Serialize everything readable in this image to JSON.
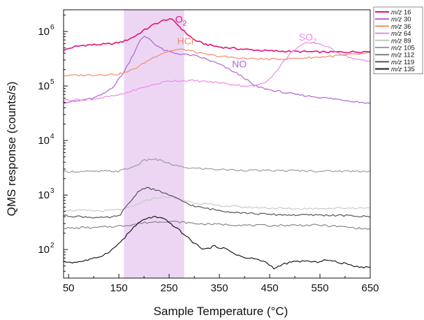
{
  "chart_data": {
    "type": "line",
    "xlabel": "Sample Temperature (°C)",
    "ylabel": "QMS response (counts/s)",
    "x_unit": "°C",
    "xlim": [
      40,
      650
    ],
    "ylim": [
      30,
      2500000
    ],
    "y_scale": "log",
    "x_ticks": [
      50,
      150,
      250,
      350,
      450,
      550,
      650
    ],
    "y_ticks": [
      {
        "value": 100,
        "label": "10",
        "exp": "2"
      },
      {
        "value": 1000,
        "label": "10",
        "exp": "3"
      },
      {
        "value": 10000,
        "label": "10",
        "exp": "4"
      },
      {
        "value": 100000,
        "label": "10",
        "exp": "5"
      },
      {
        "value": 1000000,
        "label": "10",
        "exp": "6"
      }
    ],
    "grid": false,
    "legend_position": "top-right",
    "shaded_region": {
      "x_start": 160,
      "x_end": 280,
      "color": "#ecd6f4"
    },
    "annotations": [
      {
        "text": "O",
        "sub": "2",
        "x": 262,
        "y": 1450000,
        "color": "#e0157a"
      },
      {
        "text": "HCl",
        "sub": "",
        "x": 266,
        "y": 580000,
        "color": "#f58a6e"
      },
      {
        "text": "NO",
        "sub": "",
        "x": 375,
        "y": 220000,
        "color": "#b064d6"
      },
      {
        "text": "SO",
        "sub": "2",
        "x": 508,
        "y": 680000,
        "color": "#ee8ae6"
      }
    ],
    "series": [
      {
        "name": "m/z 16",
        "color": "#e0157a",
        "width": 1.6,
        "x": [
          40,
          60,
          80,
          100,
          120,
          140,
          160,
          180,
          200,
          220,
          240,
          250,
          260,
          280,
          300,
          320,
          350,
          400,
          450,
          500,
          550,
          600,
          650
        ],
        "y": [
          450000,
          520000,
          560000,
          570000,
          580000,
          600000,
          660000,
          800000,
          1050000,
          1350000,
          1600000,
          1700000,
          1550000,
          1000000,
          700000,
          590000,
          520000,
          470000,
          440000,
          430000,
          420000,
          420000,
          430000
        ]
      },
      {
        "name": "m/z 30",
        "color": "#b064d6",
        "width": 1.2,
        "x": [
          40,
          60,
          80,
          100,
          120,
          140,
          160,
          180,
          190,
          200,
          210,
          220,
          240,
          260,
          280,
          300,
          320,
          350,
          370,
          390,
          400,
          420,
          450,
          500,
          550,
          600,
          650
        ],
        "y": [
          50000,
          52000,
          55000,
          60000,
          72000,
          100000,
          180000,
          400000,
          650000,
          800000,
          750000,
          600000,
          450000,
          400000,
          380000,
          360000,
          320000,
          250000,
          200000,
          160000,
          140000,
          100000,
          85000,
          70000,
          62000,
          55000,
          48000
        ]
      },
      {
        "name": "m/z 36",
        "color": "#f58a6e",
        "width": 1.2,
        "x": [
          40,
          100,
          150,
          170,
          190,
          210,
          230,
          250,
          270,
          290,
          310,
          350,
          400,
          450,
          500,
          550,
          600,
          650
        ],
        "y": [
          155000,
          160000,
          165000,
          185000,
          230000,
          300000,
          380000,
          440000,
          470000,
          450000,
          400000,
          350000,
          320000,
          310000,
          320000,
          340000,
          370000,
          400000
        ]
      },
      {
        "name": "m/z 64",
        "color": "#ee8ae6",
        "width": 1.2,
        "x": [
          40,
          100,
          150,
          200,
          250,
          300,
          350,
          400,
          420,
          440,
          460,
          480,
          500,
          520,
          540,
          560,
          580,
          600,
          620,
          650
        ],
        "y": [
          55000,
          58000,
          68000,
          95000,
          125000,
          125000,
          115000,
          100000,
          100000,
          115000,
          170000,
          300000,
          480000,
          600000,
          620000,
          550000,
          440000,
          360000,
          310000,
          280000
        ]
      },
      {
        "name": "m/z 89",
        "color": "#c6c6c6",
        "width": 1.1,
        "x": [
          40,
          80,
          120,
          160,
          180,
          200,
          220,
          240,
          260,
          280,
          300,
          350,
          400,
          450,
          500,
          550,
          600,
          650
        ],
        "y": [
          530,
          520,
          510,
          550,
          630,
          760,
          880,
          930,
          900,
          800,
          720,
          640,
          600,
          580,
          560,
          570,
          580,
          580
        ]
      },
      {
        "name": "m/z 105",
        "color": "#9c9c9c",
        "width": 1.2,
        "x": [
          40,
          100,
          150,
          180,
          200,
          220,
          240,
          260,
          280,
          300,
          350,
          400,
          450,
          500,
          550,
          600,
          650
        ],
        "y": [
          2700,
          2700,
          2750,
          3300,
          4300,
          4600,
          4100,
          3500,
          3200,
          3100,
          2950,
          2850,
          2800,
          2800,
          2750,
          2750,
          2750
        ]
      },
      {
        "name": "m/z 112",
        "color": "#7f7f7f",
        "width": 1.1,
        "x": [
          40,
          60,
          80,
          100,
          120,
          140,
          160,
          180,
          200,
          220,
          240,
          260,
          280,
          300,
          350,
          400,
          450,
          500,
          550,
          600,
          650
        ],
        "y": [
          250,
          245,
          255,
          250,
          260,
          265,
          275,
          290,
          310,
          320,
          330,
          325,
          315,
          300,
          290,
          280,
          275,
          280,
          280,
          260,
          235
        ]
      },
      {
        "name": "m/z 119",
        "color": "#555555",
        "width": 1.2,
        "x": [
          40,
          80,
          120,
          150,
          170,
          190,
          200,
          210,
          220,
          240,
          260,
          280,
          300,
          350,
          400,
          450,
          500,
          550,
          600,
          650
        ],
        "y": [
          420,
          400,
          380,
          410,
          700,
          1200,
          1350,
          1350,
          1250,
          1100,
          900,
          750,
          620,
          520,
          470,
          440,
          430,
          430,
          420,
          400
        ]
      },
      {
        "name": "m/z 135",
        "color": "#1a1a1a",
        "width": 1.2,
        "x": [
          40,
          60,
          80,
          100,
          120,
          140,
          160,
          180,
          200,
          220,
          240,
          260,
          280,
          300,
          320,
          340,
          360,
          380,
          400,
          420,
          440,
          460,
          480,
          500,
          520,
          540,
          560,
          580,
          600,
          620,
          640,
          650
        ],
        "y": [
          60,
          58,
          62,
          68,
          80,
          105,
          160,
          260,
          360,
          400,
          360,
          270,
          190,
          130,
          100,
          115,
          105,
          85,
          70,
          68,
          60,
          45,
          55,
          60,
          62,
          58,
          65,
          60,
          55,
          50,
          47,
          48
        ]
      }
    ]
  }
}
